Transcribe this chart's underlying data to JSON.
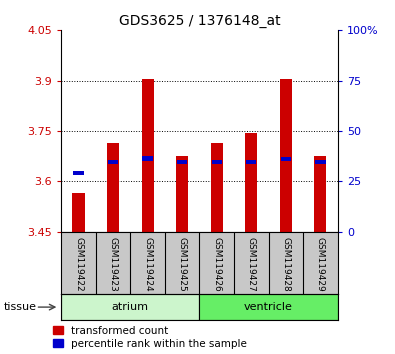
{
  "title": "GDS3625 / 1376148_at",
  "samples": [
    "GSM119422",
    "GSM119423",
    "GSM119424",
    "GSM119425",
    "GSM119426",
    "GSM119427",
    "GSM119428",
    "GSM119429"
  ],
  "red_values": [
    3.565,
    3.715,
    3.905,
    3.675,
    3.715,
    3.745,
    3.905,
    3.675
  ],
  "blue_values": [
    3.625,
    3.657,
    3.668,
    3.657,
    3.657,
    3.657,
    3.667,
    3.657
  ],
  "base_value": 3.45,
  "ylim": [
    3.45,
    4.05
  ],
  "yticks": [
    3.45,
    3.6,
    3.75,
    3.9,
    4.05
  ],
  "y2ticks": [
    0,
    25,
    50,
    75,
    100
  ],
  "ytick_labels": [
    "3.45",
    "3.6",
    "3.75",
    "3.9",
    "4.05"
  ],
  "y2tick_labels": [
    "0",
    "25",
    "50",
    "75",
    "100%"
  ],
  "groups": [
    {
      "name": "atrium",
      "start": 0,
      "end": 4,
      "color": "#ccf5cc"
    },
    {
      "name": "ventricle",
      "start": 4,
      "end": 8,
      "color": "#66ee66"
    }
  ],
  "bar_width": 0.35,
  "red_color": "#cc0000",
  "blue_color": "#0000cc",
  "tick_label_color_left": "#cc0000",
  "tick_label_color_right": "#0000cc",
  "legend_red_label": "transformed count",
  "legend_blue_label": "percentile rank within the sample",
  "tissue_label": "tissue",
  "gray_bg_color": "#c8c8c8"
}
